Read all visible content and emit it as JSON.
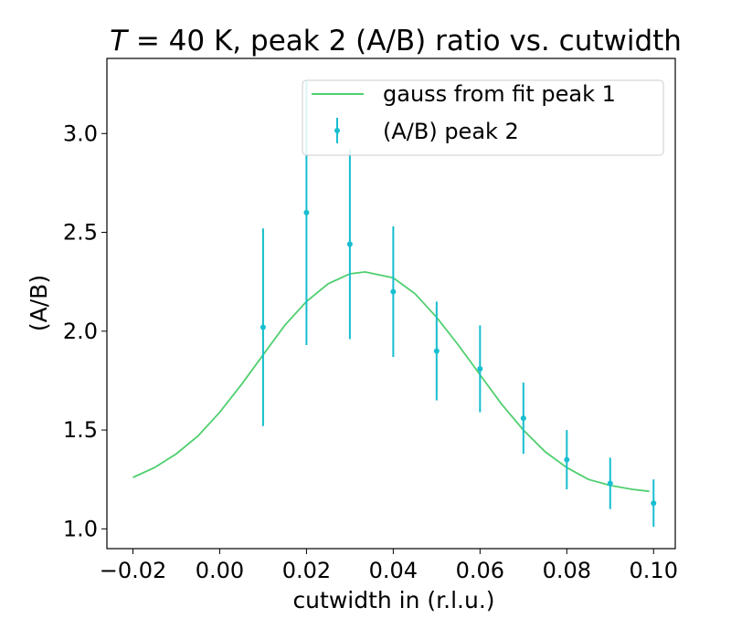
{
  "chart_data": {
    "type": "scatter",
    "title_prefix": "T",
    "title_rest": " = 40 K, peak 2 (A/B) ratio vs. cutwidth",
    "xlabel": "cutwidth in (r.l.u.)",
    "ylabel": "(A/B)",
    "xlim": [
      -0.026,
      0.105
    ],
    "ylim": [
      0.9,
      3.38
    ],
    "xticks": [
      -0.02,
      0.0,
      0.02,
      0.04,
      0.06,
      0.08,
      0.1
    ],
    "xtick_labels": [
      "−0.02",
      "0.00",
      "0.02",
      "0.04",
      "0.06",
      "0.08",
      "0.10"
    ],
    "yticks": [
      1.0,
      1.5,
      2.0,
      2.5,
      3.0
    ],
    "ytick_labels": [
      "1.0",
      "1.5",
      "2.0",
      "2.5",
      "3.0"
    ],
    "grid": false,
    "legend_position": "top-right",
    "series": [
      {
        "name": "gauss from fit peak 1",
        "kind": "line",
        "color": "#4fcf6f",
        "x": [
          -0.02,
          -0.015,
          -0.01,
          -0.005,
          0.0,
          0.005,
          0.01,
          0.015,
          0.02,
          0.025,
          0.03,
          0.0335,
          0.04,
          0.045,
          0.05,
          0.055,
          0.06,
          0.065,
          0.07,
          0.075,
          0.08,
          0.085,
          0.09,
          0.095,
          0.099
        ],
        "y": [
          1.26,
          1.31,
          1.38,
          1.47,
          1.59,
          1.73,
          1.88,
          2.03,
          2.15,
          2.24,
          2.29,
          2.3,
          2.27,
          2.19,
          2.07,
          1.93,
          1.78,
          1.63,
          1.5,
          1.39,
          1.31,
          1.25,
          1.22,
          1.2,
          1.19
        ]
      },
      {
        "name": "(A/B) peak 2",
        "kind": "errorbar",
        "color": "#17becf",
        "x": [
          0.01,
          0.02,
          0.03,
          0.04,
          0.05,
          0.06,
          0.07,
          0.08,
          0.09,
          0.1
        ],
        "y": [
          2.02,
          2.6,
          2.44,
          2.2,
          1.9,
          1.81,
          1.56,
          1.35,
          1.23,
          1.13
        ],
        "yerr_low": [
          0.5,
          0.67,
          0.48,
          0.33,
          0.25,
          0.22,
          0.18,
          0.15,
          0.13,
          0.12
        ],
        "yerr_high": [
          0.5,
          0.67,
          0.48,
          0.33,
          0.25,
          0.22,
          0.18,
          0.15,
          0.13,
          0.12
        ]
      }
    ]
  }
}
